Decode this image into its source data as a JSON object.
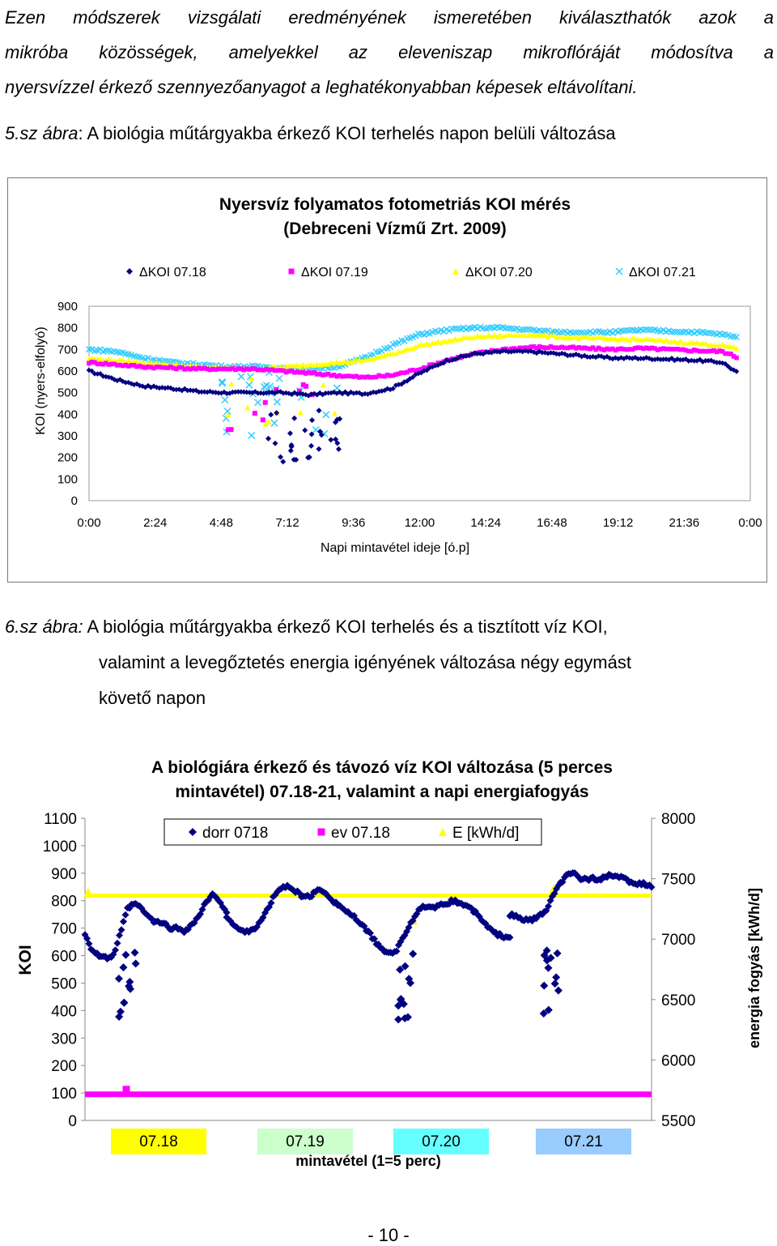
{
  "intro": {
    "lines": [
      "Ezen módszerek vizsgálati eredményének ismeretében kiválaszthatók azok a",
      "mikróba közösségek, amelyekkel az eleveniszap mikroflóráját módosítva a",
      "nyersvízzel érkező szennyezőanyagot a leghatékonyabban képesek eltávolítani."
    ]
  },
  "fig5": {
    "label": "5.sz ábra",
    "text": ": A biológia műtárgyakba érkező KOI terhelés napon belüli változása"
  },
  "fig6": {
    "label": "6.sz ábra:",
    "line1": " A biológia műtárgyakba érkező KOI terhelés és a tisztított víz KOI,",
    "line2": "valamint a levegőztetés energia igényének változása négy egymást",
    "line3": "követő napon"
  },
  "page_number": "- 10 -",
  "chart_data": [
    {
      "type": "scatter",
      "title": "Nyersvíz folyamatos fotometriás KOI mérés",
      "subtitle": "(Debreceni Vízmű Zrt. 2009)",
      "xlabel": "Napi mintavétel ideje [ó.p]",
      "ylabel": "KOI (nyers-elfolyó)",
      "xlim": [
        "0:00",
        "0:00"
      ],
      "ylim": [
        0,
        900
      ],
      "x_ticks": [
        "0:00",
        "2:24",
        "4:48",
        "7:12",
        "9:36",
        "12:00",
        "14:24",
        "16:48",
        "19:12",
        "21:36",
        "0:00"
      ],
      "y_ticks": [
        "900",
        "800",
        "700",
        "600",
        "500",
        "400",
        "300",
        "200",
        "100",
        "0"
      ],
      "legend_position": "top",
      "series": [
        {
          "name": "ΔKOI 07.18",
          "marker": "diamond",
          "color": "#000080",
          "hours": [
            0,
            1,
            2,
            3,
            4,
            5,
            6,
            7,
            8,
            9,
            10,
            11,
            12,
            13,
            14,
            15,
            16,
            17,
            18,
            19,
            20,
            21,
            22,
            23,
            23.5
          ],
          "values": [
            600,
            560,
            530,
            520,
            505,
            500,
            500,
            500,
            490,
            500,
            495,
            520,
            590,
            650,
            680,
            690,
            690,
            680,
            670,
            660,
            660,
            655,
            650,
            640,
            595
          ]
        },
        {
          "name": "ΔKOI 07.19",
          "marker": "square",
          "color": "#ff00ff",
          "hours": [
            0,
            1,
            2,
            3,
            4,
            5,
            6,
            7,
            8,
            9,
            10,
            11,
            12,
            13,
            14,
            15,
            16,
            17,
            18,
            19,
            20,
            21,
            22,
            23,
            23.5
          ],
          "values": [
            640,
            630,
            620,
            615,
            610,
            610,
            610,
            600,
            590,
            580,
            570,
            580,
            610,
            650,
            680,
            700,
            710,
            710,
            705,
            700,
            705,
            700,
            695,
            690,
            665
          ]
        },
        {
          "name": "ΔKOI 07.20",
          "marker": "triangle",
          "color": "#ffff00",
          "hours": [
            0,
            1,
            2,
            3,
            4,
            5,
            6,
            7,
            8,
            9,
            10,
            11,
            12,
            13,
            14,
            15,
            16,
            17,
            18,
            19,
            20,
            21,
            22,
            23,
            23.5
          ],
          "values": [
            660,
            650,
            640,
            630,
            620,
            615,
            610,
            620,
            630,
            640,
            650,
            680,
            720,
            740,
            760,
            765,
            770,
            760,
            755,
            750,
            748,
            740,
            730,
            720,
            705
          ]
        },
        {
          "name": "ΔKOI 07.21",
          "marker": "cross",
          "color": "#33ccff",
          "hours": [
            0,
            1,
            2,
            3,
            4,
            5,
            6,
            7,
            8,
            9,
            10,
            11,
            12,
            13,
            14,
            15,
            16,
            17,
            18,
            19,
            20,
            21,
            22,
            23,
            23.5
          ],
          "values": [
            700,
            690,
            660,
            640,
            630,
            620,
            620,
            615,
            610,
            620,
            660,
            720,
            770,
            790,
            800,
            800,
            790,
            780,
            780,
            780,
            790,
            785,
            780,
            770,
            755
          ]
        }
      ]
    },
    {
      "type": "scatter",
      "title": "A biológiára érkező és távozó víz KOI változása (5 perces",
      "subtitle": "mintavétel) 07.18-21, valamint a napi energiafogyás",
      "xlabel": "mintavétel (1=5 perc)",
      "ylabel": "KOI",
      "y2label": "energia fogyás [kWh/d]",
      "ylim": [
        0,
        1100
      ],
      "y2lim": [
        5500,
        8000
      ],
      "y_ticks": [
        "1100",
        "1000",
        "900",
        "800",
        "700",
        "600",
        "500",
        "400",
        "300",
        "200",
        "100",
        "0"
      ],
      "y2_ticks": [
        "8000",
        "7500",
        "7000",
        "6500",
        "6000",
        "5500"
      ],
      "legend_position": "top",
      "day_labels": [
        {
          "text": "07.18",
          "color": "#ffff00"
        },
        {
          "text": "07.19",
          "color": "#ccffcc"
        },
        {
          "text": "07.20",
          "color": "#66ffff"
        },
        {
          "text": "07.21",
          "color": "#99ccff"
        }
      ],
      "series": [
        {
          "name": "dorr 0718",
          "marker": "diamond",
          "color": "#000080",
          "t": [
            0,
            0.05,
            0.1,
            0.15,
            0.2,
            0.25,
            0.3,
            0.35,
            0.4,
            0.45,
            0.5,
            0.55,
            0.6,
            0.65,
            0.7,
            0.75,
            0.8,
            0.85,
            0.9,
            0.95,
            1.0
          ],
          "day_values": [
            [
              680,
              620,
              600,
              590,
              600,
              680,
              770,
              790,
              770,
              740,
              720,
              720,
              700,
              700,
              690,
              710,
              740,
              790,
              820,
              800,
              760
            ],
            [
              740,
              710,
              690,
              690,
              700,
              730,
              780,
              830,
              850,
              850,
              830,
              810,
              820,
              840,
              830,
              800,
              780,
              760,
              740,
              710,
              690
            ],
            [
              690,
              650,
              620,
              610,
              620,
              670,
              720,
              760,
              780,
              770,
              780,
              790,
              800,
              790,
              780,
              760,
              730,
              700,
              680,
              670,
              670
            ],
            [
              750,
              740,
              730,
              730,
              740,
              760,
              810,
              860,
              890,
              900,
              880,
              880,
              880,
              880,
              890,
              890,
              880,
              870,
              860,
              860,
              850
            ]
          ]
        },
        {
          "name": "ev 07.18",
          "marker": "square",
          "color": "#ff00ff",
          "level": 95
        },
        {
          "name": "E [kWh/d]",
          "marker": "triangle",
          "color": "#ffff00",
          "level": 7360
        }
      ]
    }
  ]
}
